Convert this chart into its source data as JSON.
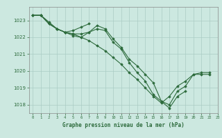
{
  "title": "Graphe pression niveau de la mer (hPa)",
  "background_color": "#cce8e0",
  "grid_color": "#aaccC4",
  "line_color": "#2d6b3c",
  "xlim": [
    -0.5,
    23
  ],
  "ylim": [
    1017.5,
    1023.8
  ],
  "yticks": [
    1018,
    1019,
    1020,
    1021,
    1022,
    1023
  ],
  "xticks": [
    0,
    1,
    2,
    3,
    4,
    5,
    6,
    7,
    8,
    9,
    10,
    11,
    12,
    13,
    14,
    15,
    16,
    17,
    18,
    19,
    20,
    21,
    22,
    23
  ],
  "series": [
    [
      1023.3,
      1023.3,
      1022.8,
      1022.5,
      1022.3,
      1022.2,
      1022.0,
      1022.3,
      1022.7,
      1022.5,
      1021.9,
      1021.4,
      1020.7,
      1020.3,
      1019.8,
      1019.3,
      1018.2,
      1018.0,
      1018.8,
      1019.1,
      1019.8,
      1019.8,
      1019.8,
      null
    ],
    [
      1023.3,
      1023.3,
      1022.8,
      1022.5,
      1022.3,
      1022.2,
      1022.2,
      1022.3,
      1022.5,
      1022.4,
      1021.7,
      1021.3,
      1020.5,
      1019.9,
      1019.4,
      1018.6,
      1018.2,
      1017.8,
      1018.5,
      1018.8,
      null,
      null,
      null,
      null
    ],
    [
      1023.3,
      1023.3,
      1022.9,
      1022.5,
      1022.3,
      1022.4,
      1022.6,
      1022.8,
      null,
      null,
      null,
      null,
      null,
      null,
      null,
      null,
      null,
      null,
      null,
      null,
      null,
      null,
      null,
      null
    ],
    [
      1023.3,
      1023.3,
      1022.8,
      1022.5,
      1022.3,
      1022.1,
      1022.0,
      1021.8,
      1021.5,
      1021.2,
      1020.8,
      1020.4,
      1019.9,
      1019.5,
      1019.0,
      1018.5,
      1018.1,
      1018.5,
      1019.1,
      1019.4,
      1019.8,
      1019.9,
      1019.9,
      null
    ]
  ],
  "figsize": [
    3.2,
    2.0
  ],
  "dpi": 100
}
